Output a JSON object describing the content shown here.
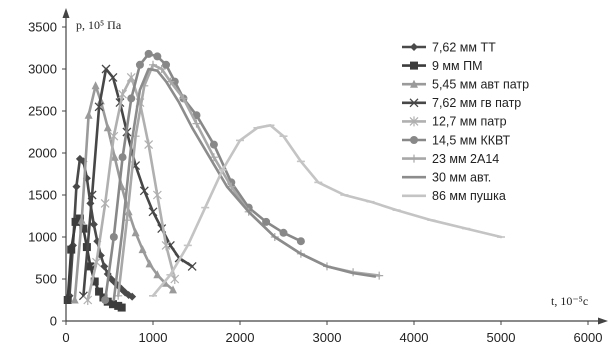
{
  "chart_data": {
    "type": "line",
    "ylabel": "p, 10⁵ Па",
    "xlabel": "t, 10⁻⁵с",
    "xlim": [
      0,
      6000
    ],
    "ylim": [
      0,
      3500
    ],
    "x_ticks": [
      0,
      1000,
      2000,
      3000,
      4000,
      5000,
      6000
    ],
    "y_ticks": [
      0,
      500,
      1000,
      1500,
      2000,
      2500,
      3000,
      3500
    ],
    "grid": false,
    "legend_position": "right",
    "series": [
      {
        "name": "7,62 мм ТТ",
        "color": "#4a4a4a",
        "marker": "diamond",
        "x": [
          40,
          80,
          120,
          160,
          200,
          240,
          280,
          320,
          360,
          400,
          440,
          480,
          520,
          560,
          600,
          640,
          680,
          720,
          760
        ],
        "y": [
          300,
          900,
          1600,
          1930,
          1900,
          1700,
          1400,
          1150,
          950,
          780,
          650,
          560,
          500,
          460,
          420,
          380,
          340,
          310,
          290
        ]
      },
      {
        "name": "9 мм ПМ",
        "color": "#3c3c3c",
        "marker": "square",
        "x": [
          20,
          60,
          110,
          160,
          200,
          240,
          280,
          330,
          380,
          430,
          480,
          540,
          600,
          640
        ],
        "y": [
          250,
          850,
          1180,
          1220,
          1100,
          880,
          650,
          470,
          350,
          280,
          230,
          200,
          180,
          160
        ]
      },
      {
        "name": "5,45 мм авт патр",
        "color": "#9a9a9a",
        "marker": "triangle",
        "x": [
          100,
          180,
          260,
          340,
          400,
          480,
          560,
          640,
          720,
          800,
          880,
          960,
          1050,
          1140,
          1230
        ],
        "y": [
          250,
          1200,
          2450,
          2800,
          2620,
          2300,
          1950,
          1600,
          1300,
          1050,
          850,
          680,
          550,
          450,
          370
        ]
      },
      {
        "name": "7,62 мм гв патр",
        "color": "#474747",
        "marker": "x",
        "x": [
          200,
          300,
          380,
          460,
          540,
          620,
          700,
          800,
          900,
          1000,
          1100,
          1200,
          1300,
          1450
        ],
        "y": [
          300,
          1500,
          2550,
          3000,
          2900,
          2600,
          2250,
          1850,
          1550,
          1300,
          1100,
          900,
          750,
          650
        ]
      },
      {
        "name": "12,7 мм патр",
        "color": "#b0b0b0",
        "marker": "asterisk",
        "x": [
          250,
          350,
          450,
          550,
          650,
          750,
          850,
          950,
          1050,
          1150,
          1250
        ],
        "y": [
          250,
          700,
          1400,
          2200,
          2700,
          2900,
          2600,
          2100,
          1500,
          900,
          500
        ]
      },
      {
        "name": "14,5 мм ККВТ",
        "color": "#888888",
        "marker": "circle",
        "x": [
          450,
          550,
          650,
          750,
          850,
          950,
          1050,
          1150,
          1250,
          1350,
          1500,
          1700,
          1900,
          2100,
          2300,
          2500,
          2700
        ],
        "y": [
          250,
          1000,
          1950,
          2650,
          3050,
          3180,
          3150,
          3050,
          2850,
          2650,
          2450,
          2100,
          1650,
          1350,
          1180,
          1050,
          950
        ]
      },
      {
        "name": "23 мм 2А14",
        "color": "#a8a8a8",
        "marker": "plus",
        "x": [
          600,
          700,
          800,
          900,
          1000,
          1100,
          1200,
          1350,
          1500,
          1700,
          1900,
          2100,
          2400,
          2700,
          3000,
          3300,
          3600
        ],
        "y": [
          300,
          1200,
          2200,
          2800,
          3050,
          3000,
          2850,
          2650,
          2350,
          1950,
          1600,
          1300,
          1000,
          800,
          650,
          580,
          540
        ]
      },
      {
        "name": "30 мм авт.",
        "color": "#8c8c8c",
        "marker": "none",
        "x": [
          550,
          650,
          750,
          850,
          950,
          1050,
          1150,
          1300,
          1450,
          1650,
          1850,
          2100,
          2400,
          2700,
          3000,
          3300,
          3550
        ],
        "y": [
          250,
          1100,
          2100,
          2750,
          3000,
          2980,
          2850,
          2600,
          2300,
          1950,
          1600,
          1300,
          1000,
          800,
          650,
          570,
          530
        ]
      },
      {
        "name": "86 мм пушка",
        "color": "#c4c4c4",
        "marker": "dash",
        "x": [
          1000,
          1200,
          1400,
          1600,
          1800,
          2000,
          2200,
          2350,
          2500,
          2700,
          2900,
          3200,
          3500,
          3800,
          4200,
          4600,
          5000
        ],
        "y": [
          300,
          550,
          900,
          1350,
          1800,
          2150,
          2300,
          2330,
          2200,
          1900,
          1650,
          1500,
          1420,
          1320,
          1200,
          1100,
          1000
        ]
      }
    ]
  }
}
